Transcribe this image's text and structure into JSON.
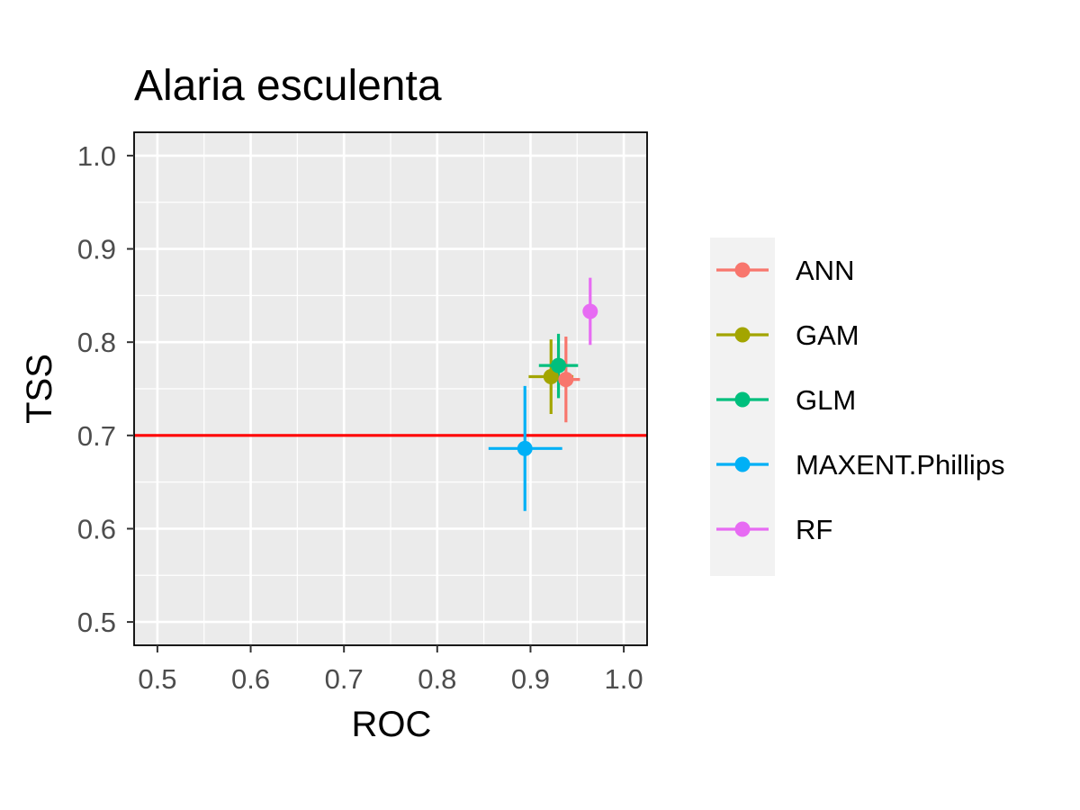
{
  "chart_data": {
    "type": "scatter",
    "title": "Alaria esculenta",
    "xlabel": "ROC",
    "ylabel": "TSS",
    "xlim": [
      0.475,
      1.025
    ],
    "ylim": [
      0.475,
      1.025
    ],
    "x_ticks": [
      "0.5",
      "0.6",
      "0.7",
      "0.8",
      "0.9",
      "1.0"
    ],
    "y_ticks": [
      "0.5",
      "0.6",
      "0.7",
      "0.8",
      "0.9",
      "1.0"
    ],
    "grid": true,
    "legend_position": "right",
    "reference_line": {
      "axis": "y",
      "value": 0.7,
      "color": "#ff0000"
    },
    "series": [
      {
        "name": "ANN",
        "color": "#F8766D",
        "x": 0.938,
        "y": 0.76,
        "x_err": [
          0.923,
          0.953
        ],
        "y_err": [
          0.714,
          0.806
        ]
      },
      {
        "name": "GAM",
        "color": "#A3A500",
        "x": 0.922,
        "y": 0.763,
        "x_err": [
          0.898,
          0.946
        ],
        "y_err": [
          0.723,
          0.803
        ]
      },
      {
        "name": "GLM",
        "color": "#00BF7D",
        "x": 0.93,
        "y": 0.775,
        "x_err": [
          0.909,
          0.951
        ],
        "y_err": [
          0.74,
          0.809
        ]
      },
      {
        "name": "MAXENT.Phillips",
        "color": "#00B0F6",
        "x": 0.894,
        "y": 0.686,
        "x_err": [
          0.855,
          0.934
        ],
        "y_err": [
          0.619,
          0.753
        ]
      },
      {
        "name": "RF",
        "color": "#E76BF3",
        "x": 0.964,
        "y": 0.833,
        "x_err": [
          0.962,
          0.966
        ],
        "y_err": [
          0.797,
          0.869
        ]
      }
    ]
  }
}
